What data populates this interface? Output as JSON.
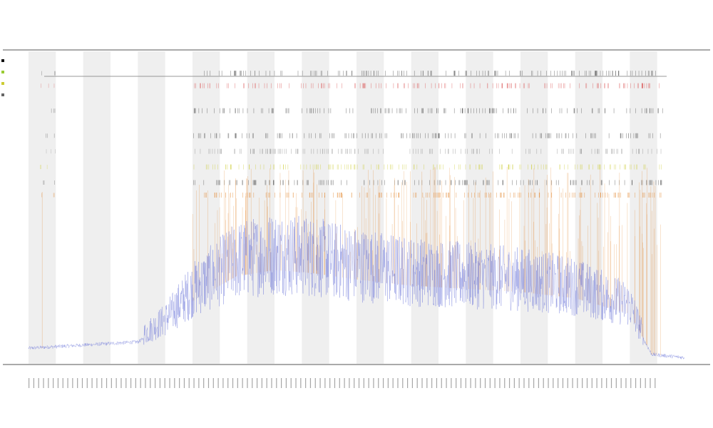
{
  "chart_data": {
    "type": "line",
    "title": "",
    "subtitle1": "",
    "subtitle2": "",
    "xlabel": "",
    "ylabel": "",
    "grid": false,
    "legend_position": "top-left",
    "band_count": 12,
    "x_range": [
      0,
      1200
    ],
    "y_range": [
      0,
      100
    ],
    "series": [
      {
        "name": "",
        "color": "#6a74d8",
        "role": "baseline-trace",
        "envelope": [
          [
            0,
            5
          ],
          [
            100,
            6
          ],
          [
            200,
            7
          ],
          [
            250,
            12
          ],
          [
            300,
            20
          ],
          [
            380,
            28
          ],
          [
            450,
            30
          ],
          [
            520,
            29
          ],
          [
            600,
            27
          ],
          [
            700,
            25
          ],
          [
            800,
            24
          ],
          [
            900,
            23
          ],
          [
            1000,
            21
          ],
          [
            1100,
            16
          ],
          [
            1140,
            3
          ],
          [
            1200,
            2
          ]
        ]
      },
      {
        "name": "",
        "color": "#e07b1a",
        "role": "spikes"
      },
      {
        "name": "",
        "color": "#cccc33",
        "role": "upper-ticks"
      },
      {
        "name": "",
        "color": "#444444",
        "role": "upper-ticks"
      },
      {
        "name": "",
        "color": "#d84a4a",
        "role": "upper-ticks"
      }
    ],
    "tick_rows": [
      {
        "color": "#444444",
        "level": 93
      },
      {
        "color": "#d84a4a",
        "level": 89
      },
      {
        "color": "#444444",
        "level": 81
      },
      {
        "color": "#444444",
        "level": 73
      },
      {
        "color": "#888888",
        "level": 68
      },
      {
        "color": "#cccc33",
        "level": 63
      },
      {
        "color": "#444444",
        "level": 58
      },
      {
        "color": "#e07b1a",
        "level": 54
      }
    ],
    "tick_label_count": 130
  },
  "legend": [
    {
      "label": "",
      "color": "#111111"
    },
    {
      "label": "",
      "color": "#99cc33"
    },
    {
      "label": "",
      "color": "#cccc33"
    },
    {
      "label": "",
      "color": "#666666"
    }
  ]
}
